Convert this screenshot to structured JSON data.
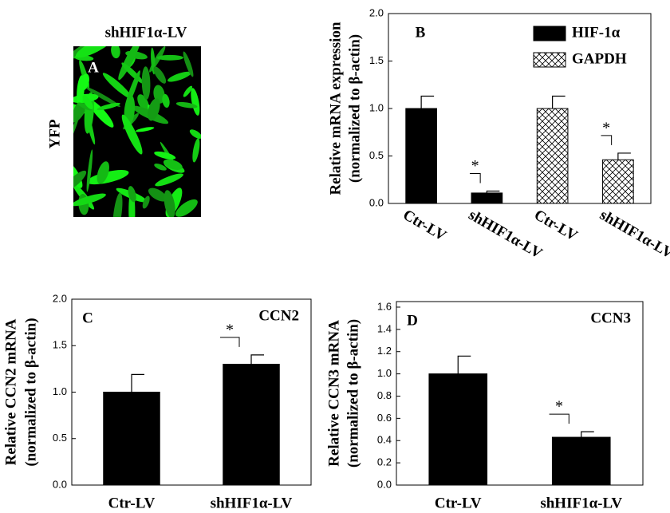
{
  "panel_a": {
    "title": "shHIF1α-LV",
    "label": "A",
    "ylabel": "YFP"
  },
  "chart_data": [
    {
      "type": "bar",
      "panel_label": "B",
      "ylabel": [
        "Relative mRNA expression",
        "(normalized to β-actin)"
      ],
      "categories": [
        "Ctr-LV",
        "shHIF1α-LV",
        "Ctr-LV",
        "shHIF1α-LV"
      ],
      "series": [
        {
          "name": "HIF-1α",
          "color": "#000000",
          "values": [
            1.0,
            0.11,
            null,
            null
          ],
          "errors": [
            0.13,
            0.02,
            null,
            null
          ]
        },
        {
          "name": "GAPDH",
          "color": "#000000",
          "fill": "crosshatch",
          "values": [
            null,
            null,
            1.0,
            0.46
          ],
          "errors": [
            null,
            null,
            0.13,
            0.07
          ]
        }
      ],
      "annotations": [
        {
          "text": "*",
          "category": 1
        },
        {
          "text": "*",
          "category": 3
        }
      ],
      "ylim": [
        0,
        2
      ],
      "yticks": [
        {
          "value": 0,
          "label": "0.0"
        },
        0.5,
        {
          "value": 1,
          "label": "1.0"
        },
        1.5,
        {
          "value": 2,
          "label": "2.0"
        }
      ],
      "legend": "upper right"
    },
    {
      "type": "bar",
      "panel_label": "C",
      "annotation": "CCN2",
      "ylabel": [
        "Relative CCN2 mRNA",
        "(normalized to β-actin)"
      ],
      "categories": [
        "Ctr-LV",
        "shHIF1α-LV"
      ],
      "series": [
        {
          "color": "#000000",
          "values": [
            1.0,
            1.3
          ],
          "errors": [
            0.19,
            0.1
          ]
        }
      ],
      "annotations": [
        {
          "text": "*",
          "category": 1
        }
      ],
      "ylim": [
        0,
        2
      ],
      "yticks": [
        {
          "value": 0,
          "label": "0.0"
        },
        0.5,
        {
          "value": 1,
          "label": "1.0"
        },
        1.5,
        {
          "value": 2,
          "label": "2.0"
        }
      ]
    },
    {
      "type": "bar",
      "panel_label": "D",
      "annotation": "CCN3",
      "ylabel": [
        "Relative CCN3  mRNA",
        "(normalized to β-actin)"
      ],
      "categories": [
        "Ctr-LV",
        "shHIF1α-LV"
      ],
      "series": [
        {
          "color": "#000000",
          "values": [
            1.0,
            0.43
          ],
          "errors": [
            0.16,
            0.05
          ]
        }
      ],
      "annotations": [
        {
          "text": "*",
          "category": 1
        }
      ],
      "ylim": [
        0,
        1.65
      ],
      "yticks": [
        {
          "value": 0,
          "label": "0.0"
        },
        0.2,
        0.4,
        0.6,
        0.8,
        {
          "value": 1,
          "label": "1.0"
        },
        1.2,
        1.4,
        1.6
      ]
    }
  ]
}
